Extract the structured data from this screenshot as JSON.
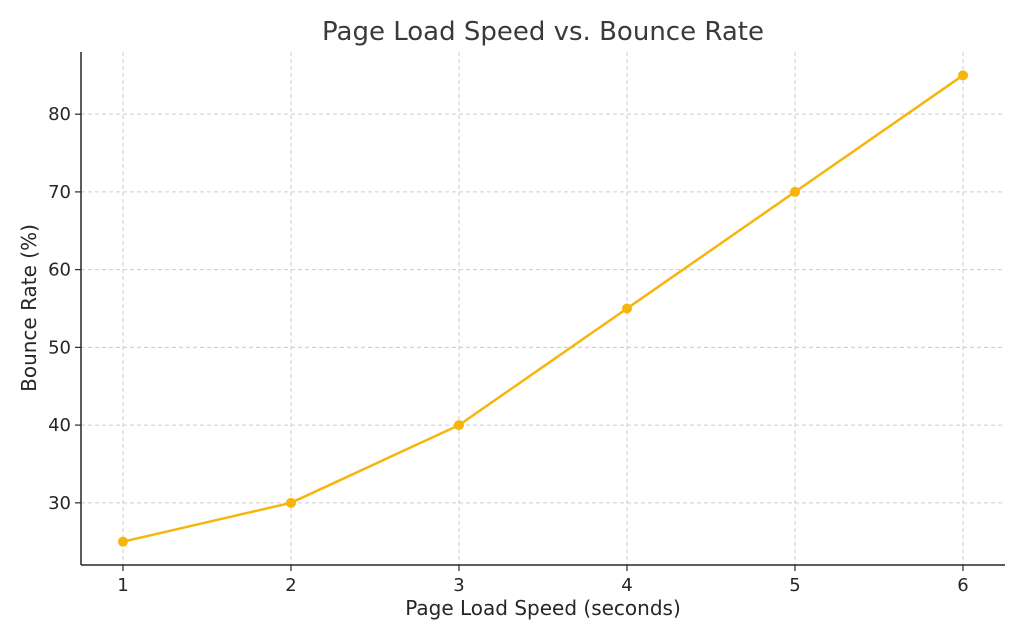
{
  "chart_data": {
    "type": "line",
    "title": "Page Load Speed vs. Bounce Rate",
    "xlabel": "Page Load Speed (seconds)",
    "ylabel": "Bounce Rate (%)",
    "x": [
      1,
      2,
      3,
      4,
      5,
      6
    ],
    "series": [
      {
        "values": [
          25,
          30,
          40,
          55,
          70,
          85
        ],
        "color": "#f5b50a"
      }
    ],
    "xticks": [
      1,
      2,
      3,
      4,
      5,
      6
    ],
    "yticks": [
      30,
      40,
      50,
      60,
      70,
      80
    ],
    "xlim": [
      0.75,
      6.25
    ],
    "ylim": [
      22,
      88
    ],
    "grid": true,
    "legend": "none",
    "marker": "circle"
  }
}
